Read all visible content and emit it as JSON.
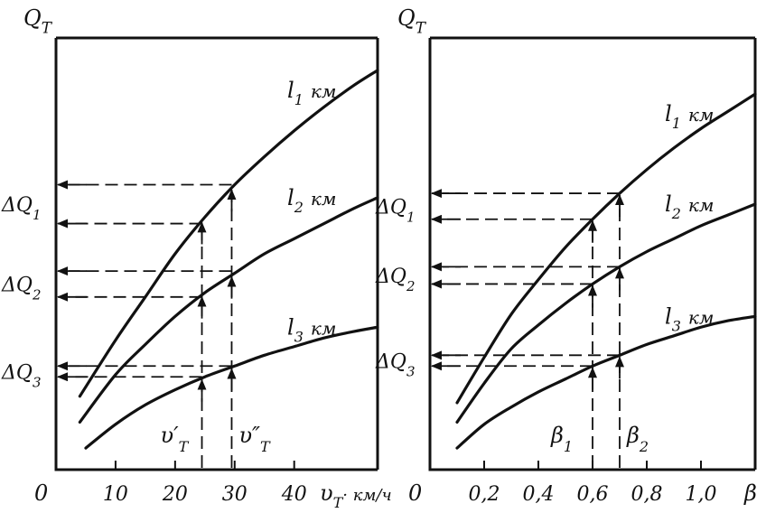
{
  "chart_data": [
    {
      "type": "line",
      "y_axis_label": "Q",
      "y_axis_sub": "T",
      "x_origin_label": "0",
      "x_ticks": [
        {
          "value": 10,
          "label": "10"
        },
        {
          "value": 20,
          "label": "20"
        },
        {
          "value": 30,
          "label": "30"
        },
        {
          "value": 40,
          "label": "40"
        }
      ],
      "x_axis_label": "υ",
      "x_axis_label_sub": "T",
      "x_axis_unit": "· км/ч",
      "xlim": [
        0,
        54
      ],
      "ylim": [
        0,
        100
      ],
      "series": [
        {
          "name": "l",
          "sub": "1",
          "unit": "км",
          "x": [
            4,
            10,
            15,
            20,
            25,
            30,
            35,
            40,
            45,
            50,
            54
          ],
          "y": [
            17,
            30,
            40,
            50,
            58.5,
            66,
            72.5,
            78.5,
            84,
            89,
            92.5
          ]
        },
        {
          "name": "l",
          "sub": "2",
          "unit": "км",
          "x": [
            4,
            10,
            15,
            20,
            25,
            30,
            35,
            40,
            45,
            50,
            54
          ],
          "y": [
            11,
            22,
            29,
            35.5,
            41,
            45.5,
            50,
            53.5,
            57,
            60.5,
            63
          ]
        },
        {
          "name": "l",
          "sub": "3",
          "unit": "км",
          "x": [
            5,
            10,
            15,
            20,
            25,
            30,
            35,
            40,
            45,
            50,
            54
          ],
          "y": [
            5,
            10.5,
            15,
            18.5,
            21.5,
            24,
            26.5,
            28.5,
            30.5,
            32,
            33
          ]
        }
      ],
      "markers": [
        {
          "x": 24.5,
          "label": "υ′",
          "sub": "T"
        },
        {
          "x": 29.5,
          "label": "υ″",
          "sub": "T"
        }
      ],
      "differences": [
        {
          "label": "ΔQ",
          "sub": "1",
          "from": 57,
          "to": 66
        },
        {
          "label": "ΔQ",
          "sub": "2",
          "from": 40,
          "to": 46
        },
        {
          "label": "ΔQ",
          "sub": "3",
          "from": 21.5,
          "to": 24
        }
      ]
    },
    {
      "type": "line",
      "y_axis_label": "Q",
      "y_axis_sub": "T",
      "x_origin_label": "0",
      "x_ticks": [
        {
          "value": 0.2,
          "label": "0,2"
        },
        {
          "value": 0.4,
          "label": "0,4"
        },
        {
          "value": 0.6,
          "label": "0,6"
        },
        {
          "value": 0.8,
          "label": "0,8"
        },
        {
          "value": 1.0,
          "label": "1,0"
        }
      ],
      "x_axis_label": "β",
      "x_axis_label_sub": "",
      "x_axis_unit": "",
      "xlim": [
        0,
        1.2
      ],
      "ylim": [
        0,
        100
      ],
      "series": [
        {
          "name": "l",
          "sub": "1",
          "unit": "км",
          "x": [
            0.1,
            0.2,
            0.3,
            0.4,
            0.5,
            0.6,
            0.7,
            0.8,
            0.9,
            1.0,
            1.1,
            1.2
          ],
          "y": [
            15.5,
            26,
            36,
            44,
            51.5,
            58,
            64,
            69.5,
            74.5,
            79,
            83,
            87
          ]
        },
        {
          "name": "l",
          "sub": "2",
          "unit": "км",
          "x": [
            0.1,
            0.2,
            0.3,
            0.4,
            0.5,
            0.6,
            0.7,
            0.8,
            0.9,
            1.0,
            1.1,
            1.2
          ],
          "y": [
            11,
            20,
            28,
            33.5,
            38.5,
            43,
            47,
            50.5,
            53.5,
            56.5,
            59,
            61.5
          ]
        },
        {
          "name": "l",
          "sub": "3",
          "unit": "км",
          "x": [
            0.1,
            0.2,
            0.3,
            0.4,
            0.5,
            0.6,
            0.7,
            0.8,
            0.9,
            1.0,
            1.1,
            1.2
          ],
          "y": [
            5,
            10.5,
            14.5,
            18,
            21,
            24,
            26.5,
            29,
            31,
            33,
            34.5,
            35.5
          ]
        }
      ],
      "markers": [
        {
          "x": 0.6,
          "label": "β",
          "sub": "1"
        },
        {
          "x": 0.7,
          "label": "β",
          "sub": "2"
        }
      ],
      "differences": [
        {
          "label": "ΔQ",
          "sub": "1",
          "from": 58,
          "to": 64
        },
        {
          "label": "ΔQ",
          "sub": "2",
          "from": 43,
          "to": 47
        },
        {
          "label": "ΔQ",
          "sub": "3",
          "from": 24,
          "to": 26.5
        }
      ]
    }
  ]
}
